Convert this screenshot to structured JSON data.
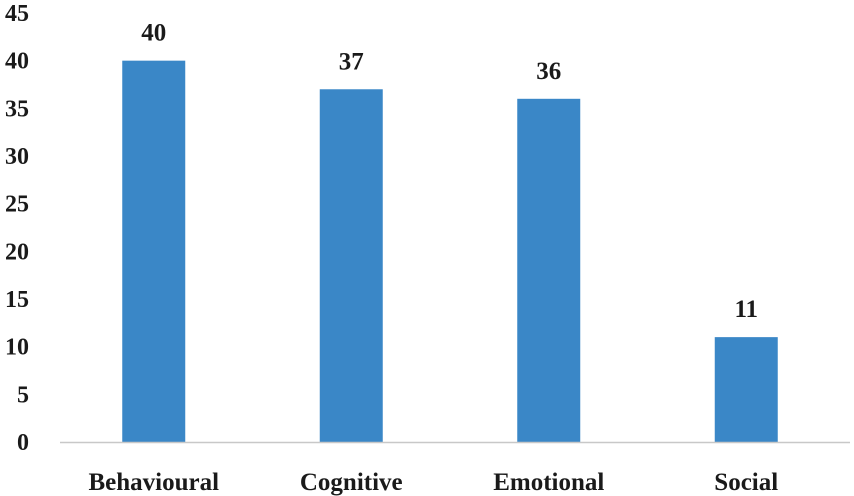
{
  "chart_data": {
    "type": "bar",
    "categories": [
      "Behavioural",
      "Cognitive",
      "Emotional",
      "Social"
    ],
    "values": [
      40,
      37,
      36,
      11
    ],
    "data_labels": [
      "40",
      "37",
      "36",
      "11"
    ],
    "y_ticks": [
      "0",
      "5",
      "10",
      "15",
      "20",
      "25",
      "30",
      "35",
      "40",
      "45"
    ],
    "ylim": [
      0,
      45
    ],
    "title": "",
    "xlabel": "",
    "ylabel": "",
    "grid": false,
    "legend": "none",
    "bar_color": "#3a87c7",
    "axis_color": "#c8c8c8",
    "text_color": "#1a1a1a"
  }
}
